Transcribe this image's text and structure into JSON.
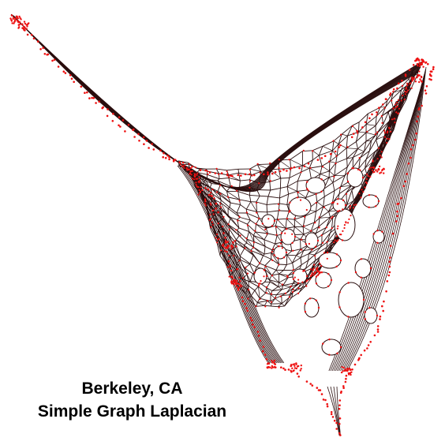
{
  "caption": {
    "line1": "Berkeley, CA",
    "line2": "Simple Graph Laplacian"
  },
  "colors": {
    "edge": "#2a0f0f",
    "node": "#ee1111",
    "background": "#ffffff"
  }
}
